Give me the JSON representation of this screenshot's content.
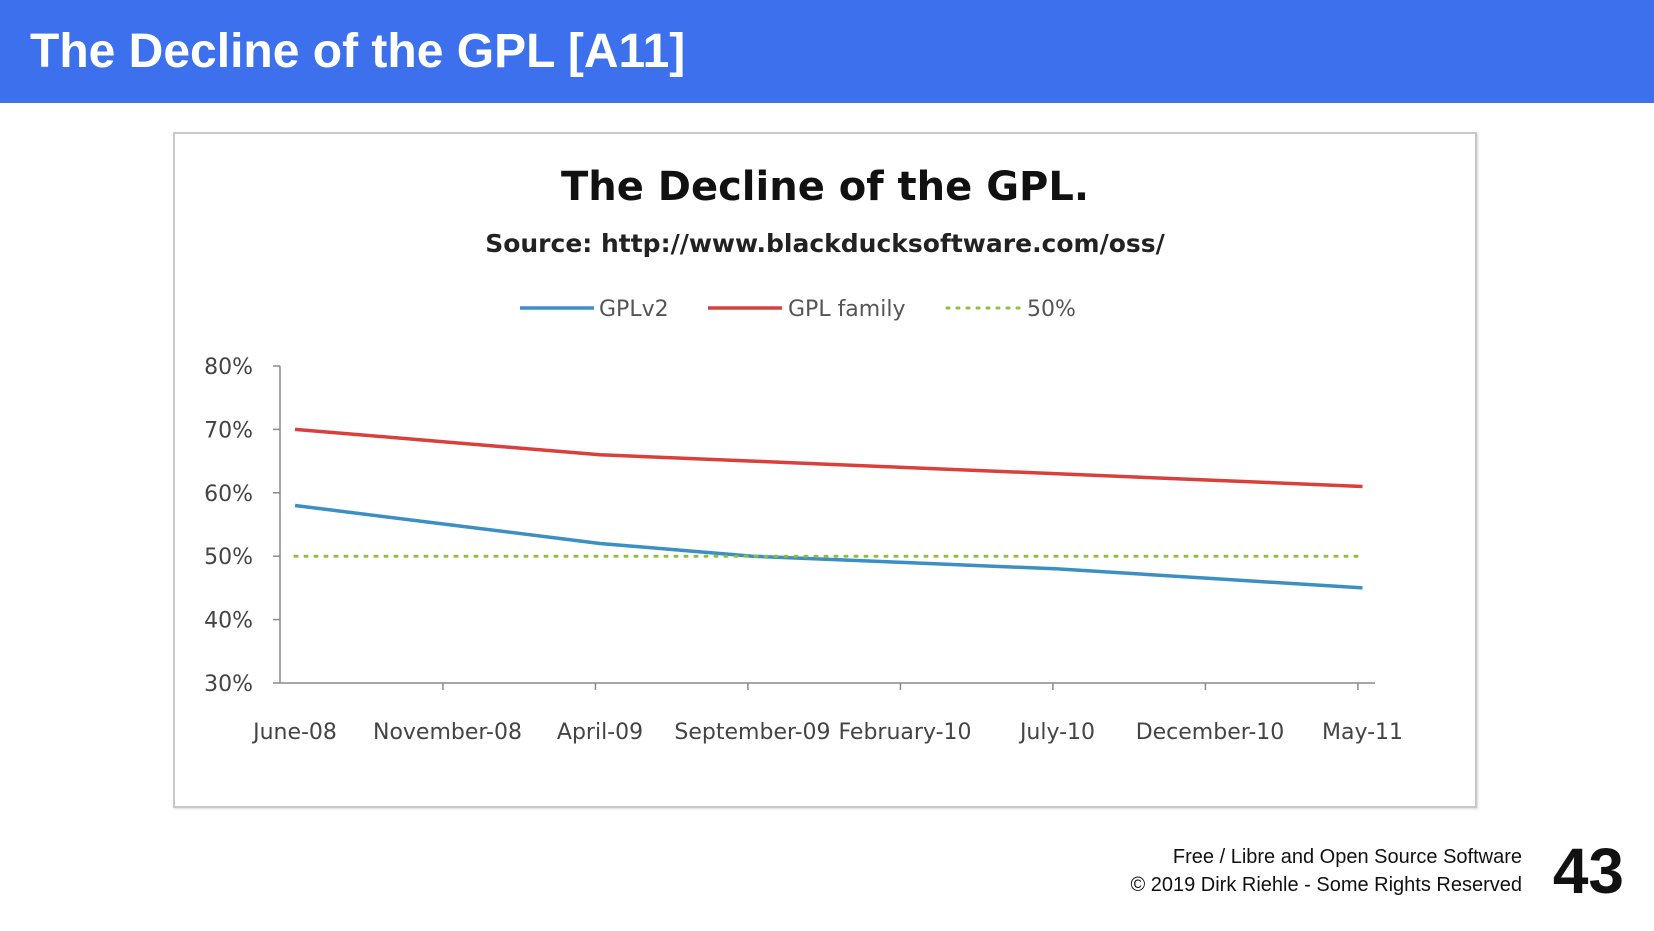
{
  "slide": {
    "title": "The Decline of the GPL [A11]",
    "footer_line1": "Free / Libre and Open Source Software",
    "footer_line2": "© 2019 Dirk Riehle - Some Rights Reserved",
    "page_number": "43",
    "header_color": "#3d70ed"
  },
  "chart_data": {
    "type": "line",
    "title": "The Decline of the GPL.",
    "subtitle": "Source: http://www.blackducksoftware.com/oss/",
    "xlabel": "",
    "ylabel": "",
    "categories": [
      "June-08",
      "November-08",
      "April-09",
      "September-09",
      "February-10",
      "July-10",
      "December-10",
      "May-11"
    ],
    "y_ticks": [
      "30%",
      "40%",
      "50%",
      "60%",
      "70%",
      "80%"
    ],
    "ylim": [
      30,
      80
    ],
    "grid": false,
    "legend_position": "top",
    "series": [
      {
        "name": "GPLv2",
        "color": "#3b8fc4",
        "style": "solid",
        "values": [
          58,
          55,
          52,
          50,
          49,
          48,
          46.5,
          45
        ]
      },
      {
        "name": "GPL family",
        "color": "#d9403b",
        "style": "solid",
        "values": [
          70,
          68,
          66,
          65,
          64,
          63,
          62,
          61
        ]
      },
      {
        "name": "50%",
        "color": "#8dbf3f",
        "style": "dotted",
        "values": [
          50,
          50,
          50,
          50,
          50,
          50,
          50,
          50
        ]
      }
    ]
  }
}
